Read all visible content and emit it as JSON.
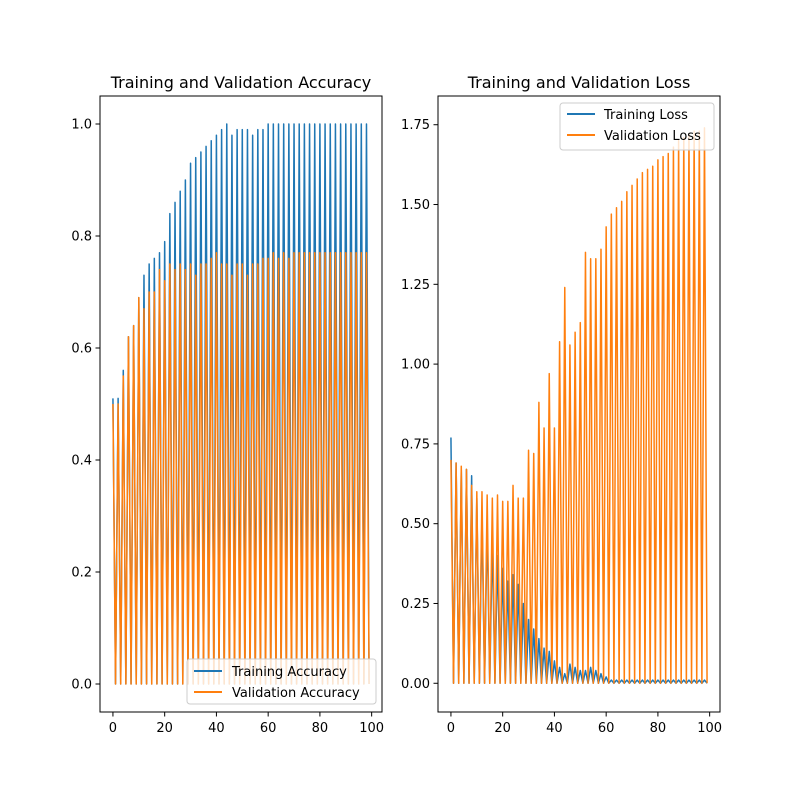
{
  "chart_data": [
    {
      "type": "line",
      "title": "Training and Validation Accuracy",
      "xlabel": "",
      "ylabel": "",
      "xlim": [
        -5,
        104
      ],
      "ylim": [
        -0.05,
        1.05
      ],
      "xticks": [
        0,
        20,
        40,
        60,
        80,
        100
      ],
      "yticks": [
        0.0,
        0.2,
        0.4,
        0.6,
        0.8,
        1.0
      ],
      "ytick_labels": [
        "0.0",
        "0.2",
        "0.4",
        "0.6",
        "0.8",
        "1.0"
      ],
      "grid": false,
      "legend_position": "lower-right",
      "pattern": "values interleaved with zeros (value at even epochs, 0 at odd epochs)",
      "x": [
        0,
        2,
        4,
        6,
        8,
        10,
        12,
        14,
        16,
        18,
        20,
        22,
        24,
        26,
        28,
        30,
        32,
        34,
        36,
        38,
        40,
        42,
        44,
        46,
        48,
        50,
        52,
        54,
        56,
        58,
        60,
        62,
        64,
        66,
        68,
        70,
        72,
        74,
        76,
        78,
        80,
        82,
        84,
        86,
        88,
        90,
        92,
        94,
        96,
        98
      ],
      "series": [
        {
          "name": "Training Accuracy",
          "color": "#1f77b4",
          "values": [
            0.51,
            0.51,
            0.56,
            0.62,
            0.64,
            0.69,
            0.73,
            0.75,
            0.76,
            0.77,
            0.79,
            0.84,
            0.86,
            0.88,
            0.9,
            0.93,
            0.94,
            0.95,
            0.96,
            0.97,
            0.98,
            0.99,
            1.0,
            0.98,
            0.99,
            0.99,
            0.99,
            0.98,
            0.99,
            0.99,
            1.0,
            1.0,
            1.0,
            1.0,
            1.0,
            1.0,
            1.0,
            1.0,
            1.0,
            1.0,
            1.0,
            1.0,
            1.0,
            1.0,
            1.0,
            1.0,
            1.0,
            1.0,
            1.0,
            1.0
          ]
        },
        {
          "name": "Validation Accuracy",
          "color": "#ff7f0e",
          "values": [
            0.5,
            0.5,
            0.55,
            0.62,
            0.64,
            0.69,
            0.67,
            0.7,
            0.7,
            0.74,
            0.72,
            0.75,
            0.74,
            0.75,
            0.74,
            0.75,
            0.73,
            0.75,
            0.75,
            0.76,
            0.77,
            0.75,
            0.75,
            0.73,
            0.75,
            0.75,
            0.73,
            0.75,
            0.75,
            0.76,
            0.76,
            0.77,
            0.76,
            0.77,
            0.76,
            0.77,
            0.77,
            0.77,
            0.77,
            0.77,
            0.77,
            0.77,
            0.77,
            0.77,
            0.77,
            0.77,
            0.77,
            0.77,
            0.77,
            0.77
          ]
        }
      ]
    },
    {
      "type": "line",
      "title": "Training and Validation Loss",
      "xlabel": "",
      "ylabel": "",
      "xlim": [
        -5,
        104
      ],
      "ylim": [
        -0.09,
        1.84
      ],
      "xticks": [
        0,
        20,
        40,
        60,
        80,
        100
      ],
      "yticks": [
        0.0,
        0.25,
        0.5,
        0.75,
        1.0,
        1.25,
        1.5,
        1.75
      ],
      "ytick_labels": [
        "0.00",
        "0.25",
        "0.50",
        "0.75",
        "1.00",
        "1.25",
        "1.50",
        "1.75"
      ],
      "grid": false,
      "legend_position": "upper-right",
      "pattern": "values interleaved with zeros (value at even epochs, 0 at odd epochs)",
      "x": [
        0,
        2,
        4,
        6,
        8,
        10,
        12,
        14,
        16,
        18,
        20,
        22,
        24,
        26,
        28,
        30,
        32,
        34,
        36,
        38,
        40,
        42,
        44,
        46,
        48,
        50,
        52,
        54,
        56,
        58,
        60,
        62,
        64,
        66,
        68,
        70,
        72,
        74,
        76,
        78,
        80,
        82,
        84,
        86,
        88,
        90,
        92,
        94,
        96,
        98
      ],
      "series": [
        {
          "name": "Training Loss",
          "color": "#1f77b4",
          "values": [
            0.77,
            0.69,
            0.67,
            0.67,
            0.65,
            0.58,
            0.53,
            0.5,
            0.45,
            0.4,
            0.36,
            0.32,
            0.34,
            0.31,
            0.25,
            0.2,
            0.17,
            0.14,
            0.11,
            0.1,
            0.07,
            0.05,
            0.03,
            0.06,
            0.05,
            0.04,
            0.04,
            0.05,
            0.04,
            0.03,
            0.02,
            0.01,
            0.01,
            0.01,
            0.01,
            0.01,
            0.01,
            0.01,
            0.01,
            0.01,
            0.01,
            0.01,
            0.01,
            0.01,
            0.01,
            0.01,
            0.01,
            0.01,
            0.01,
            0.01
          ]
        },
        {
          "name": "Validation Loss",
          "color": "#ff7f0e",
          "values": [
            0.7,
            0.69,
            0.68,
            0.67,
            0.62,
            0.6,
            0.6,
            0.59,
            0.58,
            0.59,
            0.57,
            0.57,
            0.62,
            0.58,
            0.58,
            0.73,
            0.72,
            0.88,
            0.8,
            0.97,
            0.8,
            1.07,
            1.24,
            1.06,
            1.1,
            1.13,
            1.35,
            1.33,
            1.33,
            1.36,
            1.43,
            1.47,
            1.49,
            1.51,
            1.54,
            1.56,
            1.58,
            1.6,
            1.61,
            1.62,
            1.64,
            1.65,
            1.66,
            1.68,
            1.7,
            1.71,
            1.72,
            1.73,
            1.73,
            1.74
          ]
        }
      ]
    }
  ]
}
